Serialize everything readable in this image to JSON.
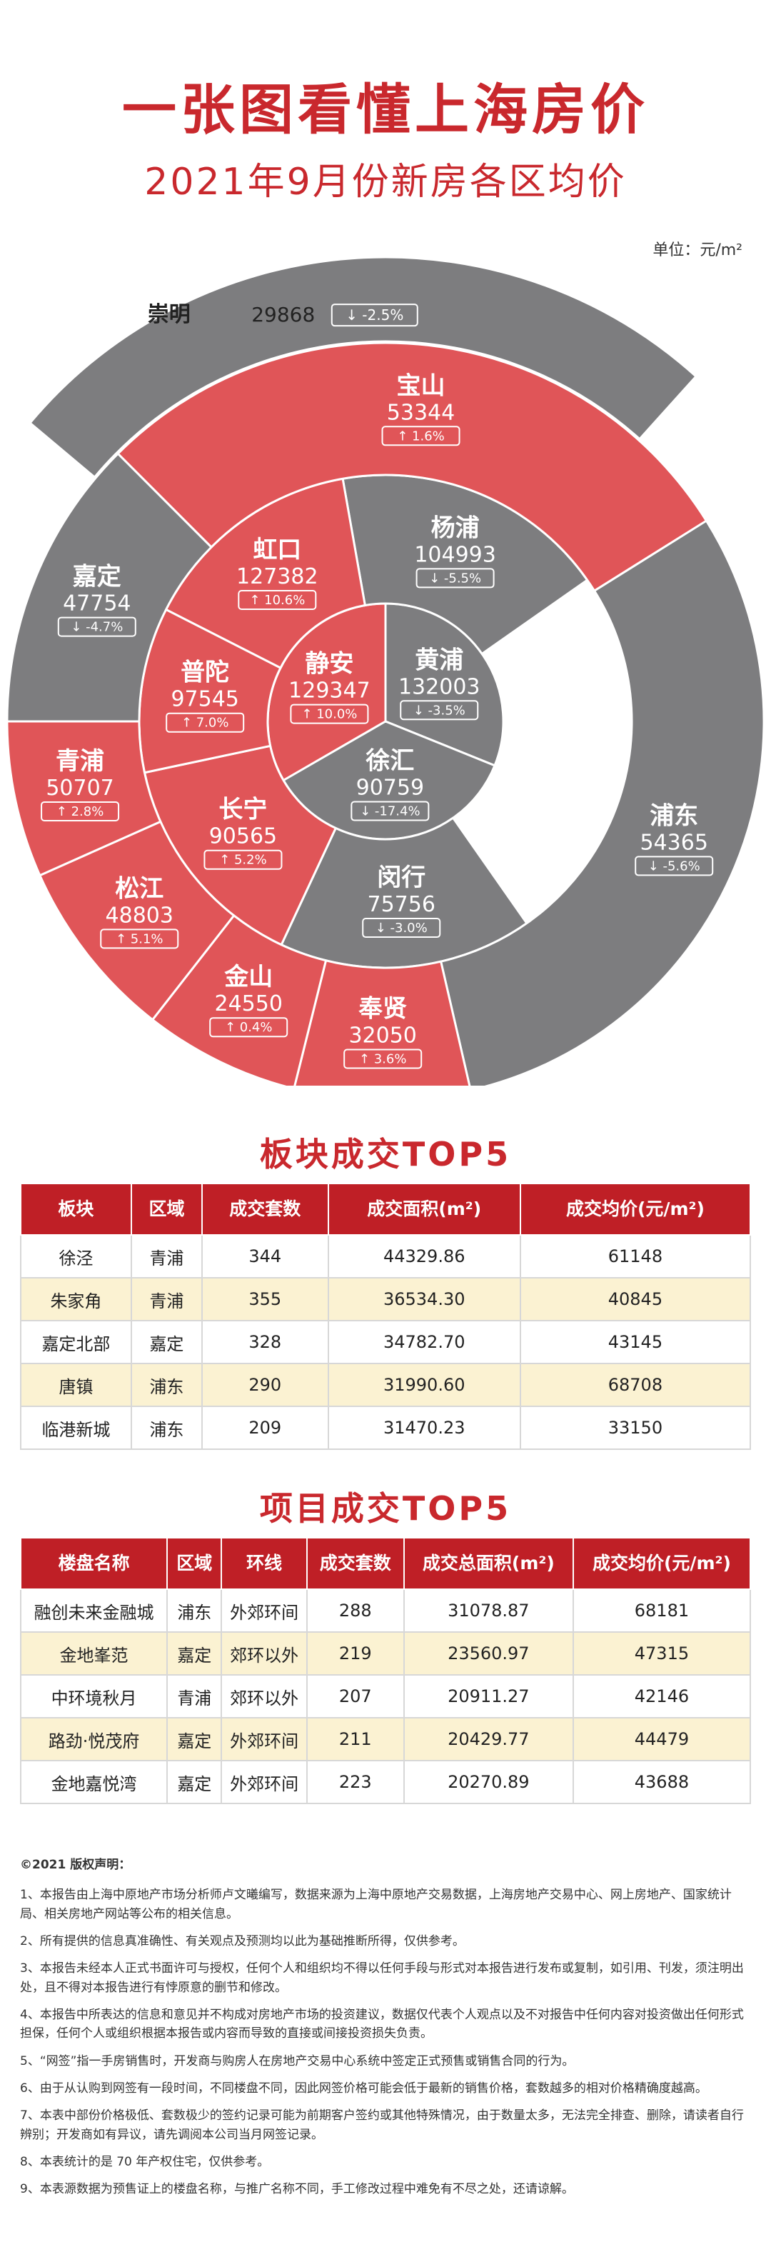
{
  "header": {
    "title": "一张图看懂上海房价",
    "subtitle": "2021年9月份新房各区均价",
    "unit": "单位：元/m²"
  },
  "colors": {
    "accent": "#c9282d",
    "up": "#e05558",
    "down": "#7d7d7f",
    "header_bg": "#bf1f26",
    "row_alt": "#fbf2d2"
  },
  "chart_data": {
    "type": "pie",
    "title": "2021年9月份新房各区均价",
    "unit": "元/m²",
    "rings": [
      {
        "ring": "inner",
        "slices": [
          {
            "name": "静安",
            "value": 129347,
            "change": "10.0%",
            "direction": "up"
          },
          {
            "name": "黄浦",
            "value": 132003,
            "change": "-3.5%",
            "direction": "down"
          },
          {
            "name": "徐汇",
            "value": 90759,
            "change": "-17.4%",
            "direction": "down"
          }
        ]
      },
      {
        "ring": "middle",
        "slices": [
          {
            "name": "杨浦",
            "value": 104993,
            "change": "-5.5%",
            "direction": "down"
          },
          {
            "name": "闵行",
            "value": 75756,
            "change": "-3.0%",
            "direction": "down"
          },
          {
            "name": "长宁",
            "value": 90565,
            "change": "5.2%",
            "direction": "up"
          },
          {
            "name": "普陀",
            "value": 97545,
            "change": "7.0%",
            "direction": "up"
          },
          {
            "name": "虹口",
            "value": 127382,
            "change": "10.6%",
            "direction": "up"
          }
        ]
      },
      {
        "ring": "outer",
        "slices": [
          {
            "name": "宝山",
            "value": 53344,
            "change": "1.6%",
            "direction": "up"
          },
          {
            "name": "浦东",
            "value": 54365,
            "change": "-5.6%",
            "direction": "down"
          },
          {
            "name": "奉贤",
            "value": 32050,
            "change": "3.6%",
            "direction": "up"
          },
          {
            "name": "金山",
            "value": 24550,
            "change": "0.4%",
            "direction": "up"
          },
          {
            "name": "松江",
            "value": 48803,
            "change": "5.1%",
            "direction": "up"
          },
          {
            "name": "青浦",
            "value": 50707,
            "change": "2.8%",
            "direction": "up"
          },
          {
            "name": "嘉定",
            "value": 47754,
            "change": "-4.7%",
            "direction": "down"
          }
        ]
      },
      {
        "ring": "top",
        "slices": [
          {
            "name": "崇明",
            "value": 29868,
            "change": "-2.5%",
            "direction": "down"
          }
        ]
      }
    ]
  },
  "block_table": {
    "title": "板块成交TOP5",
    "headers": [
      "板块",
      "区域",
      "成交套数",
      "成交面积(m²)",
      "成交均价(元/m²)"
    ],
    "rows": [
      [
        "徐泾",
        "青浦",
        "344",
        "44329.86",
        "61148"
      ],
      [
        "朱家角",
        "青浦",
        "355",
        "36534.30",
        "40845"
      ],
      [
        "嘉定北部",
        "嘉定",
        "328",
        "34782.70",
        "43145"
      ],
      [
        "唐镇",
        "浦东",
        "290",
        "31990.60",
        "68708"
      ],
      [
        "临港新城",
        "浦东",
        "209",
        "31470.23",
        "33150"
      ]
    ]
  },
  "project_table": {
    "title": "项目成交TOP5",
    "headers": [
      "楼盘名称",
      "区域",
      "环线",
      "成交套数",
      "成交总面积(m²)",
      "成交均价(元/m²)"
    ],
    "rows": [
      [
        "融创未来金融城",
        "浦东",
        "外郊环间",
        "288",
        "31078.87",
        "68181"
      ],
      [
        "金地峯范",
        "嘉定",
        "郊环以外",
        "219",
        "23560.97",
        "47315"
      ],
      [
        "中环境秋月",
        "青浦",
        "郊环以外",
        "207",
        "20911.27",
        "42146"
      ],
      [
        "路劲·悦茂府",
        "嘉定",
        "外郊环间",
        "211",
        "20429.77",
        "44479"
      ],
      [
        "金地嘉悦湾",
        "嘉定",
        "外郊环间",
        "223",
        "20270.89",
        "43688"
      ]
    ]
  },
  "notes": {
    "copyright": "©2021 版权声明：",
    "items": [
      "1、本报告由上海中原地产市场分析师卢文曦编写，数据来源为上海中原地产交易数据，上海房地产交易中心、网上房地产、国家统计局、相关房地产网站等公布的相关信息。",
      "2、所有提供的信息真准确性、有关观点及预测均以此为基础推断所得，仅供参考。",
      "3、本报告未经本人正式书面许可与授权，任何个人和组织均不得以任何手段与形式对本报告进行发布或复制，如引用、刊发，须注明出处，且不得对本报告进行有悖原意的删节和修改。",
      "4、本报告中所表达的信息和意见并不构成对房地产市场的投资建议，数据仅代表个人观点以及不对报告中任何内容对投资做出任何形式担保，任何个人或组织根据本报告或内容而导致的直接或间接投资损失负责。",
      "5、“网签”指一手房销售时，开发商与购房人在房地产交易中心系统中签定正式预售或销售合同的行为。",
      "6、由于从认购到网签有一段时间，不同楼盘不同，因此网签价格可能会低于最新的销售价格，套数越多的相对价格精确度越高。",
      "7、本表中部份价格极低、套数极少的签约记录可能为前期客户签约或其他特殊情况，由于数量太多，无法完全排查、删除，请读者自行辨别；开发商如有异议，请先调阅本公司当月网签记录。",
      "8、本表统计的是 70 年产权住宅，仅供参考。",
      "9、本表源数据为预售证上的楼盘名称，与推广名称不同，手工修改过程中难免有不尽之处，还请谅解。"
    ]
  }
}
